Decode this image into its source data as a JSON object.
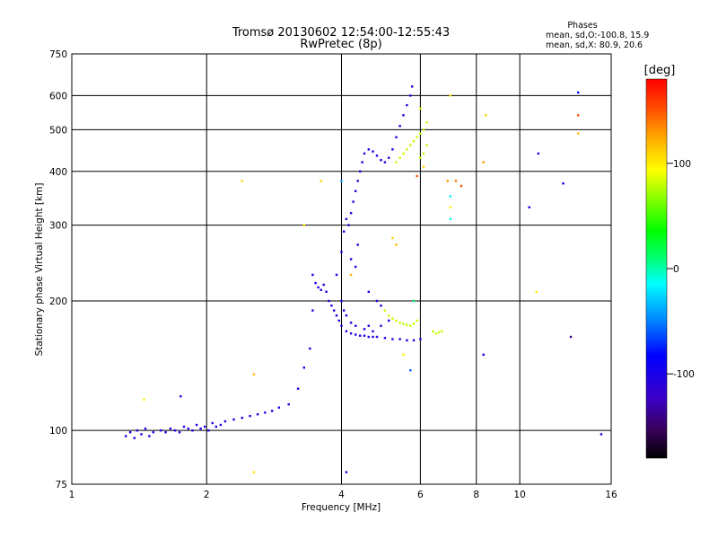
{
  "chart_data": {
    "type": "scatter",
    "title": "Tromsø 20130602 12:54:00-12:55:43",
    "subtitle": "RwPretec (8p)",
    "stats": {
      "heading": "Phases",
      "line_o": "mean, sd,O:-100.8, 15.9",
      "line_x": "mean, sd,X:  80.9, 20.6"
    },
    "xlabel": "Frequency [MHz]",
    "ylabel": "Stationary phase Virtual Height [km]",
    "x_scale": "log",
    "y_scale": "log",
    "xlim": [
      1,
      16
    ],
    "ylim": [
      75,
      750
    ],
    "x_ticks": [
      1,
      2,
      4,
      6,
      8,
      10,
      16
    ],
    "x_tick_labels": [
      "1",
      "2",
      "4",
      "6",
      "8",
      "10",
      "16"
    ],
    "y_ticks": [
      75,
      100,
      200,
      300,
      400,
      500,
      600,
      750
    ],
    "y_tick_labels": [
      "75",
      "100",
      "200",
      "300",
      "400",
      "500",
      "600",
      "750"
    ],
    "grid": true,
    "colorbar": {
      "label": "[deg]",
      "range": [
        -180,
        180
      ],
      "ticks": [
        100,
        0,
        -100
      ],
      "tick_labels": [
        "100",
        "0",
        "-100"
      ]
    },
    "series": [
      {
        "mode": "O",
        "color_value": -100,
        "points": [
          [
            1.32,
            97
          ],
          [
            1.35,
            99
          ],
          [
            1.38,
            96
          ],
          [
            1.4,
            100
          ],
          [
            1.43,
            98
          ],
          [
            1.46,
            101
          ],
          [
            1.49,
            97
          ],
          [
            1.52,
            99
          ],
          [
            1.58,
            100
          ],
          [
            1.62,
            99
          ],
          [
            1.66,
            101
          ],
          [
            1.7,
            100
          ],
          [
            1.74,
            99
          ],
          [
            1.78,
            102
          ],
          [
            1.82,
            101
          ],
          [
            1.86,
            100
          ],
          [
            1.9,
            103
          ],
          [
            1.94,
            101
          ],
          [
            1.98,
            102
          ],
          [
            2.02,
            100
          ],
          [
            2.06,
            104
          ],
          [
            2.1,
            102
          ],
          [
            2.15,
            103
          ],
          [
            2.2,
            105
          ],
          [
            2.3,
            106
          ],
          [
            2.4,
            107
          ],
          [
            2.5,
            108
          ],
          [
            2.6,
            109
          ],
          [
            2.7,
            110
          ],
          [
            2.8,
            111
          ],
          [
            2.9,
            113
          ],
          [
            3.05,
            115
          ],
          [
            3.2,
            125
          ],
          [
            3.3,
            140
          ],
          [
            3.4,
            155
          ],
          [
            3.45,
            190
          ],
          [
            3.45,
            230
          ],
          [
            3.5,
            220
          ],
          [
            3.55,
            215
          ],
          [
            3.6,
            212
          ],
          [
            3.65,
            218
          ],
          [
            3.7,
            210
          ],
          [
            3.75,
            200
          ],
          [
            3.8,
            195
          ],
          [
            3.85,
            190
          ],
          [
            3.9,
            185
          ],
          [
            3.95,
            180
          ],
          [
            4.0,
            175
          ],
          [
            4.1,
            170
          ],
          [
            4.2,
            168
          ],
          [
            4.3,
            167
          ],
          [
            4.4,
            166
          ],
          [
            4.5,
            166
          ],
          [
            4.6,
            165
          ],
          [
            4.7,
            165
          ],
          [
            4.8,
            165
          ],
          [
            5.0,
            164
          ],
          [
            5.2,
            163
          ],
          [
            5.4,
            163
          ],
          [
            5.6,
            162
          ],
          [
            5.8,
            162
          ],
          [
            6.0,
            163
          ],
          [
            3.9,
            230
          ],
          [
            4.0,
            260
          ],
          [
            4.05,
            290
          ],
          [
            4.1,
            310
          ],
          [
            4.15,
            300
          ],
          [
            4.2,
            320
          ],
          [
            4.25,
            340
          ],
          [
            4.3,
            360
          ],
          [
            4.35,
            380
          ],
          [
            4.4,
            400
          ],
          [
            4.45,
            420
          ],
          [
            4.5,
            440
          ],
          [
            4.6,
            450
          ],
          [
            4.7,
            445
          ],
          [
            4.8,
            435
          ],
          [
            4.9,
            425
          ],
          [
            5.0,
            420
          ],
          [
            5.1,
            430
          ],
          [
            5.2,
            450
          ],
          [
            5.3,
            480
          ],
          [
            5.4,
            510
          ],
          [
            5.5,
            540
          ],
          [
            5.6,
            570
          ],
          [
            5.7,
            600
          ],
          [
            5.75,
            630
          ],
          [
            4.0,
            200
          ],
          [
            4.05,
            190
          ],
          [
            4.1,
            185
          ],
          [
            4.2,
            178
          ],
          [
            4.3,
            175
          ],
          [
            4.5,
            172
          ],
          [
            4.7,
            170
          ],
          [
            4.9,
            175
          ],
          [
            5.1,
            180
          ],
          [
            4.6,
            210
          ],
          [
            4.8,
            200
          ],
          [
            4.9,
            195
          ],
          [
            4.2,
            250
          ],
          [
            4.3,
            240
          ],
          [
            4.35,
            270
          ]
        ]
      },
      {
        "mode": "X",
        "color_value": 80,
        "points": [
          [
            5.0,
            190
          ],
          [
            5.1,
            185
          ],
          [
            5.2,
            182
          ],
          [
            5.3,
            180
          ],
          [
            5.4,
            178
          ],
          [
            5.5,
            177
          ],
          [
            5.6,
            176
          ],
          [
            5.7,
            175
          ],
          [
            5.8,
            177
          ],
          [
            5.9,
            180
          ],
          [
            6.4,
            170
          ],
          [
            6.5,
            168
          ],
          [
            6.6,
            169
          ],
          [
            6.7,
            170
          ],
          [
            5.3,
            420
          ],
          [
            5.4,
            430
          ],
          [
            5.5,
            440
          ],
          [
            5.6,
            450
          ],
          [
            5.7,
            460
          ],
          [
            5.8,
            470
          ],
          [
            5.9,
            480
          ],
          [
            6.0,
            490
          ],
          [
            6.1,
            500
          ],
          [
            6.2,
            520
          ],
          [
            6.0,
            430
          ],
          [
            6.1,
            440
          ],
          [
            6.2,
            460
          ],
          [
            6.0,
            560
          ]
        ]
      },
      {
        "mode": "scattered",
        "color_value": 0,
        "points": [
          [
            1.45,
            118,
            100
          ],
          [
            1.75,
            120,
            -100
          ],
          [
            2.4,
            380,
            110
          ],
          [
            2.55,
            135,
            120
          ],
          [
            2.55,
            80,
            105
          ],
          [
            3.3,
            300,
            100
          ],
          [
            3.6,
            380,
            110
          ],
          [
            5.3,
            270,
            120
          ],
          [
            5.2,
            280,
            110
          ],
          [
            5.5,
            150,
            100
          ],
          [
            5.7,
            138,
            -60
          ],
          [
            5.9,
            390,
            150
          ],
          [
            6.9,
            380,
            130
          ],
          [
            7.0,
            350,
            -20
          ],
          [
            7.0,
            330,
            100
          ],
          [
            7.0,
            310,
            -10
          ],
          [
            7.2,
            380,
            140
          ],
          [
            7.4,
            370,
            150
          ],
          [
            8.3,
            420,
            130
          ],
          [
            8.4,
            540,
            110
          ],
          [
            8.3,
            150,
            -100
          ],
          [
            7.0,
            600,
            100
          ],
          [
            11.0,
            440,
            -100
          ],
          [
            10.5,
            330,
            -100
          ],
          [
            10.9,
            210,
            100
          ],
          [
            12.5,
            375,
            -100
          ],
          [
            13.5,
            610,
            -80
          ],
          [
            13.5,
            540,
            150
          ],
          [
            13.5,
            490,
            120
          ],
          [
            13.0,
            165,
            -140
          ],
          [
            15.2,
            98,
            -100
          ],
          [
            4.1,
            80,
            -100
          ],
          [
            4.6,
            175,
            -100
          ],
          [
            4.0,
            380,
            -40
          ],
          [
            4.2,
            230,
            120
          ],
          [
            6.1,
            410,
            110
          ],
          [
            5.8,
            200,
            10
          ]
        ]
      }
    ]
  }
}
